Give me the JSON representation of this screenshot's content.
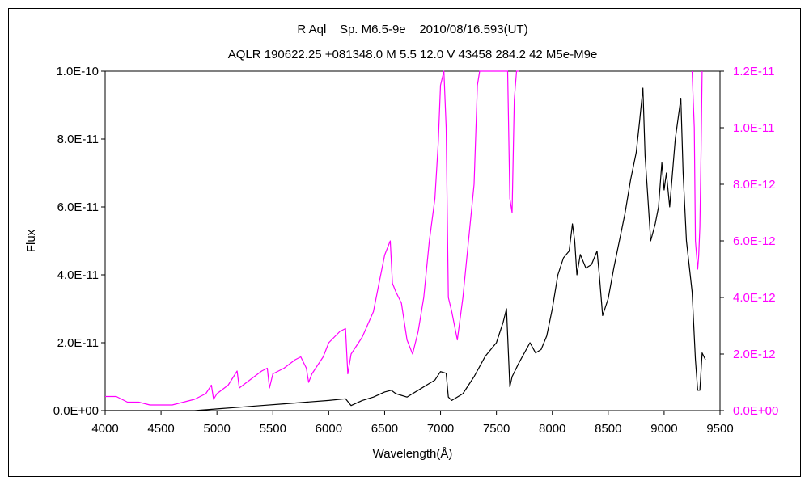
{
  "chart_data": {
    "type": "line",
    "title": "R Aql    Sp. M6.5-9e    2010/08/16.593(UT)",
    "subtitle": "AQLR 190622.25 +081348.0 M 5.5 12.0 V 43458 284.2 42 M5e-M9e",
    "xlabel": "Wavelength(Å)",
    "ylabel": "Flux",
    "xlim": [
      4000,
      9500
    ],
    "ylim": [
      0,
      1e-10
    ],
    "y2lim": [
      0,
      1.2e-11
    ],
    "x_ticks": [
      "4000",
      "4500",
      "5000",
      "5500",
      "6000",
      "6500",
      "7000",
      "7500",
      "8000",
      "8500",
      "9000",
      "9500"
    ],
    "y_ticks": [
      "0.0E+00",
      "2.0E-11",
      "4.0E-11",
      "6.0E-11",
      "8.0E-11",
      "1.0E-10"
    ],
    "y2_ticks": [
      "0.0E+00",
      "2.0E-12",
      "4.0E-12",
      "6.0E-12",
      "8.0E-12",
      "1.0E-11",
      "1.2E-11"
    ],
    "grid": false,
    "series": [
      {
        "axis": "left",
        "color": "#000000",
        "x": [
          4000,
          4300,
          4600,
          4800,
          5000,
          5200,
          5400,
          5600,
          5800,
          6000,
          6150,
          6200,
          6300,
          6400,
          6500,
          6560,
          6600,
          6700,
          6800,
          6900,
          6950,
          7000,
          7050,
          7070,
          7100,
          7200,
          7300,
          7400,
          7500,
          7560,
          7590,
          7620,
          7640,
          7700,
          7800,
          7850,
          7900,
          7950,
          8000,
          8050,
          8100,
          8150,
          8180,
          8200,
          8220,
          8250,
          8300,
          8350,
          8400,
          8420,
          8450,
          8500,
          8550,
          8600,
          8650,
          8700,
          8750,
          8780,
          8810,
          8830,
          8850,
          8880,
          8920,
          8950,
          8980,
          9000,
          9020,
          9050,
          9100,
          9150,
          9170,
          9200,
          9250,
          9280,
          9300,
          9320,
          9340,
          9370
        ],
        "y": [
          0,
          0,
          0,
          0,
          5e-13,
          1e-12,
          1.5e-12,
          2e-12,
          2.5e-12,
          3e-12,
          3.5e-12,
          1.5e-12,
          3e-12,
          4e-12,
          5.5e-12,
          6e-12,
          5e-12,
          4e-12,
          6e-12,
          8e-12,
          9e-12,
          1.15e-11,
          1.1e-11,
          4e-12,
          3e-12,
          5e-12,
          1e-11,
          1.6e-11,
          2e-11,
          2.6e-11,
          3e-11,
          7e-12,
          1e-11,
          1.4e-11,
          2e-11,
          1.7e-11,
          1.8e-11,
          2.2e-11,
          3e-11,
          4e-11,
          4.5e-11,
          4.7e-11,
          5.5e-11,
          5e-11,
          4e-11,
          4.6e-11,
          4.2e-11,
          4.3e-11,
          4.7e-11,
          4e-11,
          2.8e-11,
          3.3e-11,
          4.2e-11,
          5e-11,
          5.8e-11,
          6.8e-11,
          7.6e-11,
          8.5e-11,
          9.5e-11,
          7.5e-11,
          6.5e-11,
          5e-11,
          5.5e-11,
          6e-11,
          7.3e-11,
          6.5e-11,
          7e-11,
          6e-11,
          8e-11,
          9.2e-11,
          7e-11,
          5e-11,
          3.5e-11,
          1.5e-11,
          6e-12,
          6e-12,
          1.7e-11,
          1.5e-11
        ]
      },
      {
        "axis": "right",
        "color": "#ff00ff",
        "x": [
          4000,
          4100,
          4200,
          4300,
          4400,
          4500,
          4600,
          4700,
          4800,
          4900,
          4950,
          4970,
          5000,
          5100,
          5180,
          5200,
          5300,
          5400,
          5450,
          5470,
          5500,
          5600,
          5700,
          5750,
          5800,
          5820,
          5850,
          5900,
          5950,
          6000,
          6100,
          6150,
          6170,
          6200,
          6300,
          6400,
          6450,
          6500,
          6550,
          6570,
          6600,
          6650,
          6700,
          6750,
          6800,
          6850,
          6900,
          6950,
          6980,
          7000,
          7030,
          7050,
          7070,
          7100,
          7150,
          7200,
          7250,
          7300,
          7330,
          7350,
          7400,
          7500,
          7550,
          7580,
          7600,
          7620,
          7640,
          7660,
          7680,
          7700
        ],
        "y": [
          5e-13,
          5e-13,
          3e-13,
          3e-13,
          2e-13,
          2e-13,
          2e-13,
          3e-13,
          4e-13,
          6e-13,
          9e-13,
          4e-13,
          6e-13,
          9e-13,
          1.4e-12,
          8e-13,
          1.1e-12,
          1.4e-12,
          1.5e-12,
          8e-13,
          1.3e-12,
          1.5e-12,
          1.8e-12,
          1.9e-12,
          1.5e-12,
          1e-12,
          1.3e-12,
          1.6e-12,
          1.9e-12,
          2.4e-12,
          2.8e-12,
          2.9e-12,
          1.3e-12,
          2e-12,
          2.6e-12,
          3.5e-12,
          4.5e-12,
          5.5e-12,
          6e-12,
          4.5e-12,
          4.2e-12,
          3.8e-12,
          2.5e-12,
          2e-12,
          2.8e-12,
          4e-12,
          6e-12,
          7.5e-12,
          9.5e-12,
          1.15e-11,
          1.2e-11,
          1e-11,
          4e-12,
          3.5e-12,
          2.5e-12,
          4e-12,
          6e-12,
          8e-12,
          1.15e-11,
          1.2e-11,
          1.2e-11,
          1.2e-11,
          1.2e-11,
          1.2e-11,
          1.2e-11,
          7.5e-12,
          7e-12,
          1.1e-11,
          1.2e-11,
          1.2e-11
        ]
      },
      {
        "axis": "right",
        "color": "#ff00ff",
        "x": [
          9250,
          9270,
          9280,
          9290,
          9300,
          9310,
          9320,
          9330,
          9340
        ],
        "y": [
          1.2e-11,
          1e-11,
          6e-12,
          5.5e-12,
          5e-12,
          5.5e-12,
          6.5e-12,
          9e-12,
          1.2e-11
        ]
      }
    ]
  }
}
